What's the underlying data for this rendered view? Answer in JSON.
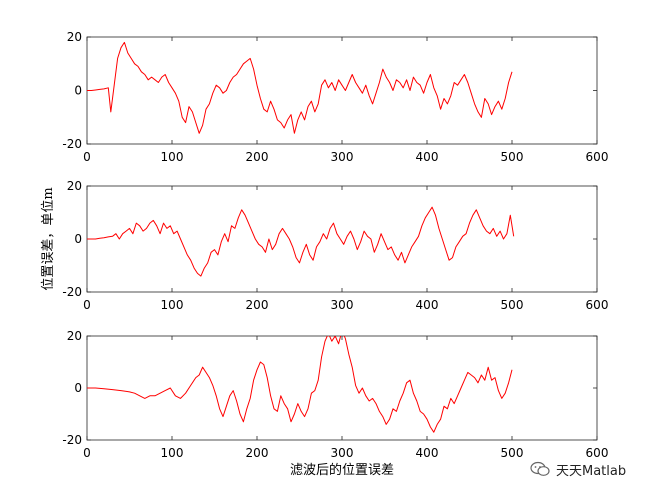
{
  "chart_data": [
    {
      "type": "line",
      "xlim": [
        0,
        600
      ],
      "ylim": [
        -20,
        20
      ],
      "xticks": [
        0,
        100,
        200,
        300,
        400,
        500,
        600
      ],
      "yticks": [
        -20,
        0,
        20
      ],
      "ylabel": "",
      "xlabel": "",
      "series": [
        {
          "color": "#ff0000",
          "x": [
            0,
            5,
            10,
            15,
            20,
            25,
            28,
            32,
            36,
            40,
            44,
            48,
            52,
            56,
            60,
            64,
            68,
            72,
            76,
            80,
            84,
            88,
            92,
            96,
            100,
            104,
            108,
            112,
            116,
            120,
            124,
            128,
            132,
            136,
            140,
            144,
            148,
            152,
            156,
            160,
            164,
            168,
            172,
            176,
            180,
            184,
            188,
            192,
            196,
            200,
            204,
            208,
            212,
            216,
            220,
            224,
            228,
            232,
            236,
            240,
            244,
            248,
            252,
            256,
            260,
            264,
            268,
            272,
            276,
            280,
            284,
            288,
            292,
            296,
            300,
            304,
            308,
            312,
            316,
            320,
            324,
            328,
            332,
            336,
            340,
            344,
            348,
            352,
            356,
            360,
            364,
            368,
            372,
            376,
            380,
            384,
            388,
            392,
            396,
            400,
            404,
            408,
            412,
            416,
            420,
            424,
            428,
            432,
            436,
            440,
            444,
            448,
            452,
            456,
            460,
            464,
            468,
            472,
            476,
            480,
            484,
            488,
            492,
            496,
            500
          ],
          "y": [
            0,
            0,
            0.2,
            0.4,
            0.6,
            1,
            -8,
            2,
            12,
            16,
            18,
            14,
            12,
            10,
            9,
            7,
            6,
            4,
            5,
            4,
            3,
            5,
            6,
            3,
            1,
            -1,
            -4,
            -10,
            -12,
            -6,
            -8,
            -12,
            -16,
            -13,
            -7,
            -5,
            -1,
            2,
            1,
            -1,
            0,
            3,
            5,
            6,
            8,
            10,
            11,
            12,
            8,
            2,
            -3,
            -7,
            -8,
            -4,
            -7,
            -11,
            -12,
            -14,
            -11,
            -9,
            -16,
            -11,
            -8,
            -11,
            -6,
            -4,
            -8,
            -5,
            2,
            4,
            1,
            3,
            0,
            4,
            2,
            0,
            3,
            6,
            3,
            1,
            -1,
            2,
            -2,
            -5,
            -1,
            3,
            8,
            5,
            3,
            0,
            4,
            3,
            1,
            4,
            0,
            5,
            3,
            2,
            -1,
            3,
            6,
            1,
            -2,
            -7,
            -3,
            -5,
            -2,
            3,
            2,
            4,
            6,
            3,
            -1,
            -5,
            -8,
            -10,
            -3,
            -5,
            -9,
            -6,
            -4,
            -7,
            -3,
            3,
            7
          ]
        }
      ]
    },
    {
      "type": "line",
      "xlim": [
        0,
        600
      ],
      "ylim": [
        -20,
        20
      ],
      "xticks": [
        0,
        100,
        200,
        300,
        400,
        500,
        600
      ],
      "yticks": [
        -20,
        0,
        20
      ],
      "ylabel": "位置误差，单位m",
      "xlabel": "",
      "series": [
        {
          "color": "#ff0000",
          "x": [
            0,
            5,
            10,
            15,
            20,
            25,
            30,
            34,
            38,
            42,
            46,
            50,
            54,
            58,
            62,
            66,
            70,
            74,
            78,
            82,
            86,
            90,
            94,
            98,
            102,
            106,
            110,
            114,
            118,
            122,
            126,
            130,
            134,
            138,
            142,
            146,
            150,
            154,
            158,
            162,
            166,
            170,
            174,
            178,
            182,
            186,
            190,
            194,
            198,
            202,
            206,
            210,
            214,
            218,
            222,
            226,
            230,
            234,
            238,
            242,
            246,
            250,
            254,
            258,
            262,
            266,
            270,
            274,
            278,
            282,
            286,
            290,
            294,
            298,
            302,
            306,
            310,
            314,
            318,
            322,
            326,
            330,
            334,
            338,
            342,
            346,
            350,
            354,
            358,
            362,
            366,
            370,
            374,
            378,
            382,
            386,
            390,
            394,
            398,
            402,
            406,
            410,
            414,
            418,
            422,
            426,
            430,
            434,
            438,
            442,
            446,
            450,
            454,
            458,
            462,
            466,
            470,
            474,
            478,
            482,
            486,
            490,
            494,
            498,
            502
          ],
          "y": [
            0,
            0,
            0,
            0.3,
            0.5,
            0.8,
            1,
            2,
            0,
            2,
            3,
            4,
            2,
            6,
            5,
            3,
            4,
            6,
            7,
            5,
            2,
            6,
            4,
            5,
            2,
            3,
            0,
            -3,
            -6,
            -8,
            -11,
            -13,
            -14,
            -11,
            -9,
            -5,
            -4,
            -6,
            -1,
            2,
            -1,
            5,
            4,
            8,
            11,
            9,
            6,
            3,
            0,
            -2,
            -3,
            -5,
            0,
            -4,
            -2,
            2,
            4,
            2,
            0,
            -3,
            -7,
            -9,
            -5,
            -2,
            -6,
            -8,
            -3,
            -1,
            2,
            0,
            4,
            6,
            2,
            0,
            -2,
            1,
            3,
            0,
            -4,
            -1,
            3,
            1,
            0,
            -5,
            -2,
            2,
            -1,
            -4,
            -3,
            -6,
            -8,
            -5,
            -9,
            -6,
            -3,
            -1,
            1,
            5,
            8,
            10,
            12,
            9,
            4,
            0,
            -4,
            -8,
            -7,
            -3,
            -1,
            1,
            2,
            6,
            9,
            11,
            8,
            5,
            3,
            2,
            4,
            1,
            3,
            0,
            2,
            9,
            1
          ]
        }
      ]
    },
    {
      "type": "line",
      "xlim": [
        0,
        600
      ],
      "ylim": [
        -20,
        20
      ],
      "xticks": [
        0,
        100,
        200,
        300,
        400,
        500,
        600
      ],
      "yticks": [
        -20,
        0,
        20
      ],
      "ylabel": "",
      "xlabel": "滤波后的位置误差",
      "series": [
        {
          "color": "#ff0000",
          "x": [
            0,
            10,
            20,
            30,
            40,
            50,
            56,
            62,
            68,
            74,
            80,
            86,
            92,
            98,
            104,
            110,
            116,
            122,
            128,
            132,
            136,
            140,
            144,
            148,
            152,
            156,
            160,
            164,
            168,
            172,
            176,
            180,
            184,
            188,
            192,
            196,
            200,
            204,
            208,
            212,
            216,
            220,
            224,
            228,
            232,
            236,
            240,
            244,
            248,
            252,
            256,
            260,
            264,
            268,
            272,
            276,
            280,
            284,
            288,
            292,
            296,
            300,
            304,
            308,
            312,
            316,
            320,
            324,
            328,
            332,
            336,
            340,
            344,
            348,
            352,
            356,
            360,
            364,
            368,
            372,
            376,
            380,
            384,
            388,
            392,
            396,
            400,
            404,
            408,
            412,
            416,
            420,
            424,
            428,
            432,
            436,
            440,
            444,
            448,
            452,
            456,
            460,
            464,
            468,
            472,
            476,
            480,
            484,
            488,
            492,
            496,
            500
          ],
          "y": [
            0,
            0,
            -0.3,
            -0.6,
            -1,
            -1.5,
            -2,
            -3,
            -4,
            -3,
            -3,
            -2,
            -1,
            0,
            -3,
            -4,
            -2,
            1,
            4,
            5,
            8,
            6,
            4,
            1,
            -3,
            -8,
            -11,
            -7,
            -3,
            -1,
            -5,
            -10,
            -13,
            -8,
            -4,
            3,
            7,
            10,
            9,
            4,
            -3,
            -8,
            -9,
            -3,
            -6,
            -8,
            -13,
            -10,
            -6,
            -9,
            -11,
            -8,
            -2,
            -1,
            3,
            12,
            18,
            21,
            18,
            20,
            17,
            22,
            19,
            13,
            8,
            1,
            -2,
            0,
            -3,
            -5,
            -4,
            -6,
            -9,
            -11,
            -14,
            -12,
            -8,
            -9,
            -5,
            -2,
            2,
            3,
            -2,
            -5,
            -9,
            -10,
            -12,
            -15,
            -17,
            -14,
            -12,
            -7,
            -8,
            -4,
            -6,
            -3,
            0,
            3,
            6,
            5,
            4,
            2,
            5,
            3,
            8,
            3,
            4,
            -1,
            -4,
            -2,
            2,
            7
          ]
        }
      ]
    }
  ],
  "watermark": {
    "text": "天天Matlab",
    "icon": "wechat-icon"
  }
}
